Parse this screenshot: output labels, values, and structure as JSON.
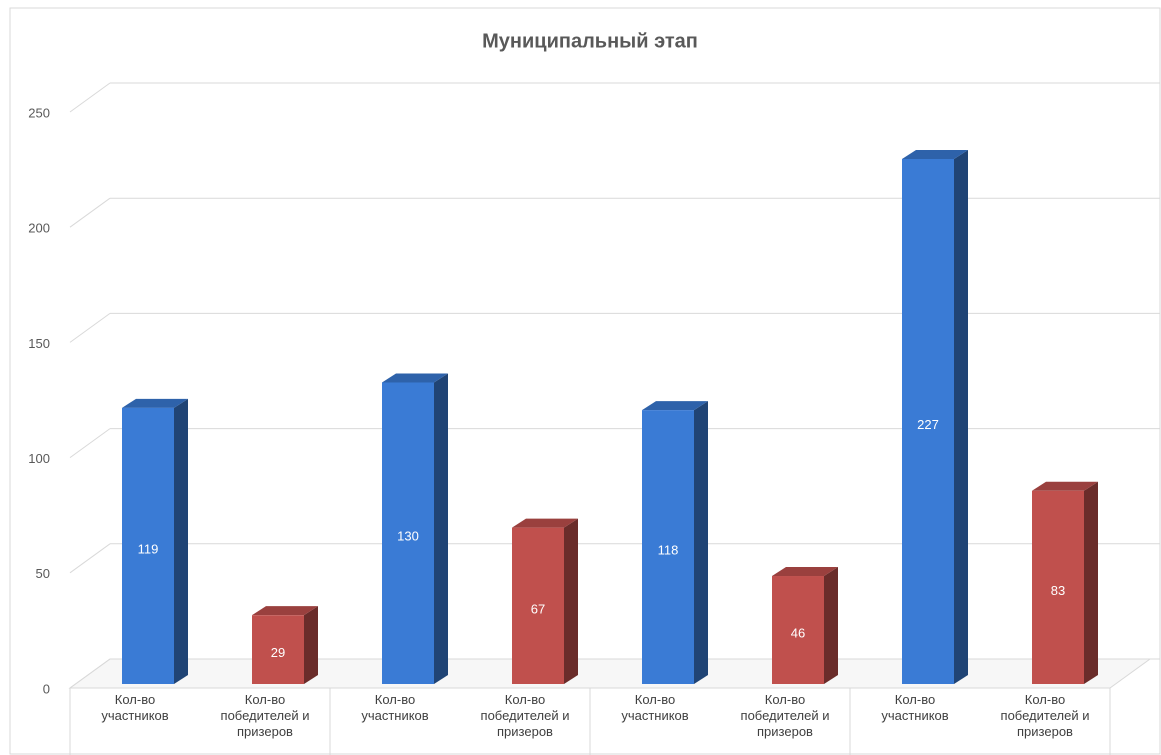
{
  "chart_data": {
    "type": "bar3d",
    "title": "Муниципальный этап",
    "categories": [
      "Кол-во участников",
      "Кол-во победителей и призеров",
      "Кол-во участников",
      "Кол-во победителей и призеров",
      "Кол-во участников",
      "Кол-во победителей и призеров",
      "Кол-во участников",
      "Кол-во победителей и призеров"
    ],
    "values": [
      119,
      29,
      130,
      67,
      118,
      46,
      227,
      83
    ],
    "colors": [
      "#3a7bd5",
      "#c0504d",
      "#3a7bd5",
      "#c0504d",
      "#3a7bd5",
      "#c0504d",
      "#3a7bd5",
      "#c0504d"
    ],
    "ylim": [
      0,
      250
    ],
    "yticks": [
      0,
      50,
      100,
      150,
      200,
      250
    ],
    "grid": true
  }
}
